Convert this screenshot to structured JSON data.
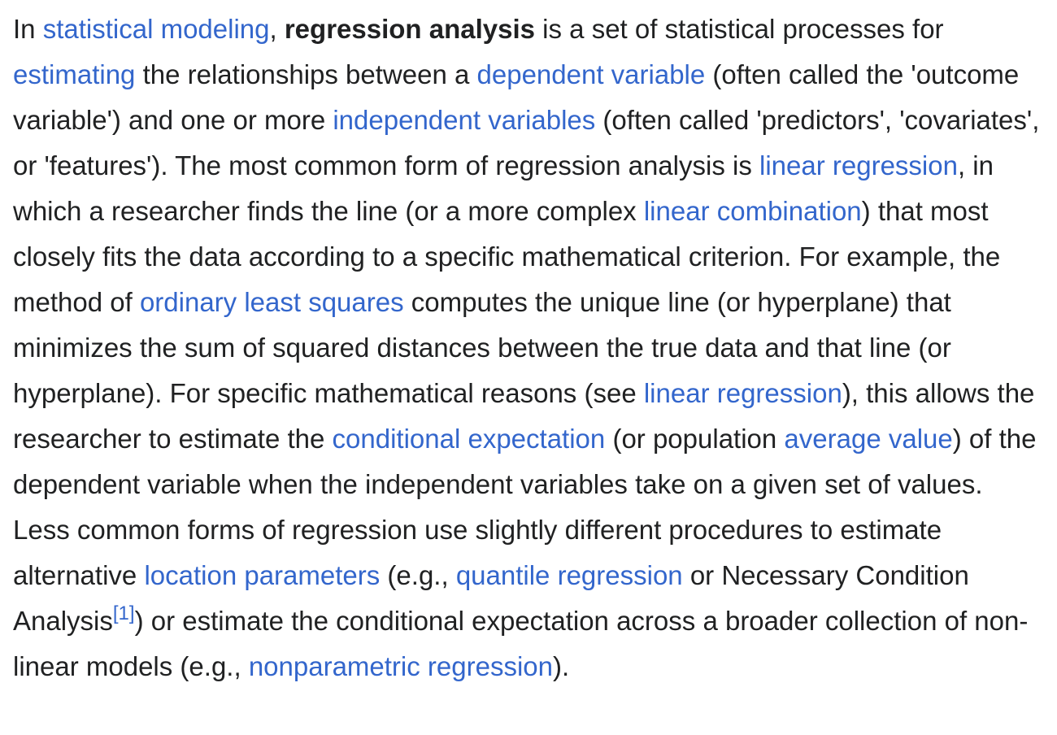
{
  "paragraph": {
    "t01": "In ",
    "link_statistical_modeling": "statistical modeling",
    "t02": ", ",
    "bold_term": "regression analysis",
    "t03": " is a set of statistical processes for ",
    "link_estimating": "estimating",
    "t04": " the relationships between a ",
    "link_dependent_variable": "dependent variable",
    "t05": " (often called the 'outcome variable') and one or more ",
    "link_independent_variables": "independent variables",
    "t06": " (often called 'predictors', 'covariates', or 'features'). The most common form of regression analysis is ",
    "link_linear_regression_1": "linear regression",
    "t07": ", in which a researcher finds the line (or a more complex ",
    "link_linear_combination": "linear combination",
    "t08": ") that most closely fits the data according to a specific mathematical criterion. For example, the method of ",
    "link_ordinary_least_squares": "ordinary least squares",
    "t09": " computes the unique line (or hyperplane) that minimizes the sum of squared distances between the true data and that line (or hyperplane). For specific mathematical reasons (see ",
    "link_linear_regression_2": "linear regression",
    "t10": "), this allows the researcher to estimate the ",
    "link_conditional_expectation": "conditional expectation",
    "t11": " (or population ",
    "link_average_value": "average value",
    "t12": ") of the dependent variable when the independent variables take on a given set of values. Less common forms of regression use slightly different procedures to estimate alternative ",
    "link_location_parameters": "location parameters",
    "t13": " (e.g., ",
    "link_quantile_regression": "quantile regression",
    "t14": " or Necessary Condition Analysis",
    "citation_1": "[1]",
    "t15": ") or estimate the conditional expectation across a broader collection of non-linear models (e.g., ",
    "link_nonparametric_regression": "nonparametric regression",
    "t16": ")."
  },
  "colors": {
    "text": "#202122",
    "link": "#3366cc",
    "background": "#ffffff"
  }
}
